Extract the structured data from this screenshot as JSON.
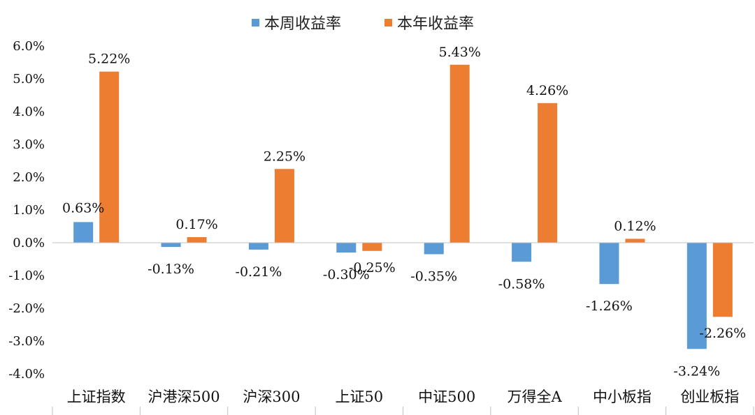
{
  "chart_data": {
    "type": "bar",
    "categories": [
      "上证指数",
      "沪港深500",
      "沪深300",
      "上证50",
      "中证500",
      "万得全A",
      "中小板指",
      "创业板指"
    ],
    "series": [
      {
        "name": "本周收益率",
        "color": "#5b9bd5",
        "values": [
          0.63,
          -0.13,
          -0.21,
          -0.3,
          -0.35,
          -0.58,
          -1.26,
          -3.24
        ],
        "labels": [
          "0.63%",
          "-0.13%",
          "-0.21%",
          "-0.30%",
          "-0.35%",
          "-0.58%",
          "-1.26%",
          "-3.24%"
        ]
      },
      {
        "name": "本年收益率",
        "color": "#ed7d31",
        "values": [
          5.22,
          0.17,
          2.25,
          -0.25,
          5.43,
          4.26,
          0.12,
          -2.26
        ],
        "labels": [
          "5.22%",
          "0.17%",
          "2.25%",
          "-0.25%",
          "5.43%",
          "4.26%",
          "0.12%",
          "-2.26%"
        ]
      }
    ],
    "yticks": [
      6,
      5,
      4,
      3,
      2,
      1,
      0,
      -1,
      -2,
      -3,
      -4
    ],
    "ytick_labels": [
      "6.0%",
      "5.0%",
      "4.0%",
      "3.0%",
      "2.0%",
      "1.0%",
      "0.0%",
      "-1.0%",
      "-2.0%",
      "-3.0%",
      "-4.0%"
    ],
    "ylim": [
      -4,
      6
    ],
    "grid": false,
    "legend": "top-center"
  }
}
